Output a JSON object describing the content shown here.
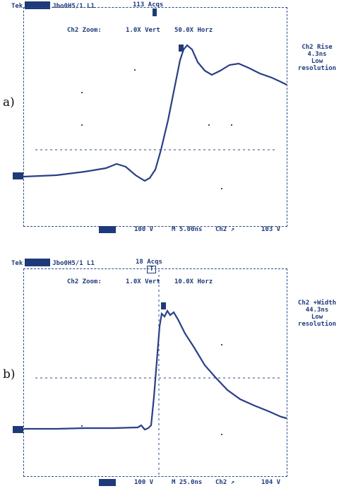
{
  "panel_a": {
    "label": "a)",
    "header": {
      "tek": "Tek",
      "status": "Jbo0H5/1 L1",
      "acqs": "113 Acqs"
    },
    "zoom": {
      "title": "Ch2 Zoom:",
      "vert": "1.0X Vert",
      "horz": "50.0X Horz"
    },
    "measurement": {
      "name": "Ch2 Rise",
      "value": "4.3ns",
      "note1": "Low",
      "note2": "resolution"
    },
    "footer": {
      "ch_scale": "100 V",
      "timebase": "M 5.00ns",
      "trig_src": "Ch2 ↗",
      "trig_level": "103 V"
    },
    "cursor_marker": "1"
  },
  "panel_b": {
    "label": "b)",
    "header": {
      "tek": "Tek",
      "status": "Jbo0H5/1 L1",
      "acqs": "18 Acqs",
      "trig_mark": "T"
    },
    "zoom": {
      "title": "Ch2 Zoom:",
      "vert": "1.0X Vert",
      "horz": "10.0X Horz"
    },
    "measurement": {
      "name": "Ch2 +Width",
      "value": "44.3ns",
      "note1": "Low",
      "note2": "resolution"
    },
    "footer": {
      "ch_scale": "100 V",
      "timebase": "M 25.0ns",
      "trig_src": "Ch2 ↗",
      "trig_level": "104 V"
    },
    "cursor_marker": "1"
  },
  "colors": {
    "trace": "#2a3f86",
    "ink": "#1f3a7a",
    "paper": "#ffffff"
  }
}
